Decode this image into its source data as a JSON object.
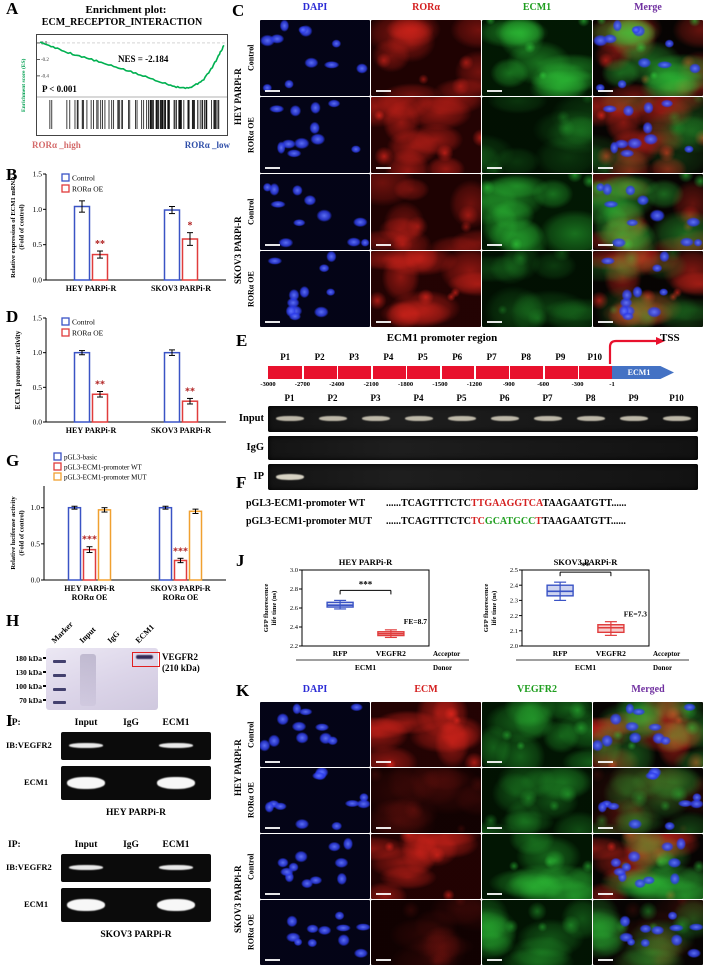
{
  "colors": {
    "control_blue": "#3a53c5",
    "oe_red": "#e03c3c",
    "mut_orange": "#f0a030",
    "dapi_blue": "#2b2bd5",
    "stain_red": "#d42020",
    "stain_green": "#1f9e1f",
    "merge_purple": "#7030a0",
    "gsea_green": "#00b050",
    "promoter_red": "#e8112d",
    "gene_blue": "#4472c4",
    "sig_red": "#b02020"
  },
  "panels": {
    "A": {
      "label": "A",
      "title1": "Enrichment plot:",
      "title2": "ECM_RECEPTOR_INTERACTION",
      "nes": "NES = -2.184",
      "pval": "P < 0.001",
      "ylabel": "Enrichment score (ES)",
      "x_left": "RORα _high",
      "x_right": "RORα _low",
      "yticks": [
        "0.0",
        "-0.2",
        "-0.4"
      ]
    },
    "B": {
      "label": "B"
    },
    "C": {
      "label": "C",
      "columns": [
        {
          "name": "DAPI",
          "color": "#2b2bd5"
        },
        {
          "name": "RORα",
          "color": "#d42020"
        },
        {
          "name": "ECM1",
          "color": "#1f9e1f"
        },
        {
          "name": "Merge",
          "color": "#7030a0"
        }
      ],
      "groups": [
        {
          "name": "HEY PARPi-R",
          "rows": [
            {
              "name": "Control",
              "red": 0.75,
              "green": 0.85
            },
            {
              "name": "RORα OE",
              "red": 1.0,
              "green": 0.35
            }
          ]
        },
        {
          "name": "SKOV3 PARPi-R",
          "rows": [
            {
              "name": "Control",
              "red": 0.7,
              "green": 0.85
            },
            {
              "name": "RORα OE",
              "red": 0.95,
              "green": 0.4
            }
          ]
        }
      ]
    },
    "D": {
      "label": "D"
    },
    "E": {
      "label": "E",
      "title": "ECM1 promoter region",
      "tss": "TSS",
      "gene": "ECM1",
      "p_labels": [
        "P1",
        "P2",
        "P3",
        "P4",
        "P5",
        "P6",
        "P7",
        "P8",
        "P9",
        "P10"
      ],
      "positions": [
        "-3000",
        "-2700",
        "-2400",
        "-2100",
        "-1800",
        "-1500",
        "-1200",
        "-900",
        "-600",
        "-300",
        "-1"
      ],
      "gel_rows": [
        {
          "name": "Input",
          "bands": [
            1,
            1,
            1,
            1,
            1,
            1,
            1,
            1,
            1,
            1
          ]
        },
        {
          "name": "IgG",
          "bands": [
            0,
            0,
            0,
            0,
            0,
            0,
            0,
            0,
            0,
            0
          ]
        },
        {
          "name": "IP",
          "bands": [
            1,
            0,
            0,
            0,
            0,
            0,
            0,
            0,
            0,
            0
          ]
        }
      ]
    },
    "F": {
      "label": "F",
      "lines": [
        {
          "name": "pGL3-ECM1-promoter WT",
          "segments": [
            {
              "t": "......TCAGTTTCTC",
              "c": "#000000"
            },
            {
              "t": "TTGAAGGTCA",
              "c": "#d42020"
            },
            {
              "t": "TAAGAATGTT......",
              "c": "#000000"
            }
          ]
        },
        {
          "name": "pGL3-ECM1-promoter MUT",
          "segments": [
            {
              "t": "......TCAGTTTCTC",
              "c": "#000000"
            },
            {
              "t": "TC",
              "c": "#d42020"
            },
            {
              "t": "GCATGCC",
              "c": "#1f9e1f"
            },
            {
              "t": "T",
              "c": "#d42020"
            },
            {
              "t": "TAAGAATGTT......",
              "c": "#000000"
            }
          ]
        }
      ]
    },
    "G": {
      "label": "G"
    },
    "H": {
      "label": "H",
      "lanes": [
        "Marker",
        "Input",
        "IgG",
        "ECM1"
      ],
      "mw": [
        "180 kDa",
        "130 kDa",
        "100 kDa",
        "70 kDa"
      ],
      "target": [
        "VEGFR2",
        "(210 kDa)"
      ]
    },
    "I": {
      "label": "I",
      "sets": [
        {
          "ip": "IP:",
          "lanes": [
            "Input",
            "IgG",
            "ECM1"
          ],
          "blots": [
            {
              "name": "IB:VEGFR2",
              "bands": [
                1,
                0,
                1
              ],
              "thick": false
            },
            {
              "name": "ECM1",
              "bands": [
                1,
                0,
                1
              ],
              "thick": true
            }
          ],
          "cell_line": "HEY PARPi-R"
        },
        {
          "ip": "IP:",
          "lanes": [
            "Input",
            "IgG",
            "ECM1"
          ],
          "blots": [
            {
              "name": "IB:VEGFR2",
              "bands": [
                1,
                0,
                1
              ],
              "thick": false
            },
            {
              "name": "ECM1",
              "bands": [
                1,
                0,
                1
              ],
              "thick": true
            }
          ],
          "cell_line": "SKOV3 PARPi-R"
        }
      ]
    },
    "J": {
      "label": "J"
    },
    "K": {
      "label": "K",
      "columns": [
        {
          "name": "DAPI",
          "color": "#2b2bd5"
        },
        {
          "name": "ECM",
          "color": "#d42020"
        },
        {
          "name": "VEGFR2",
          "color": "#1f9e1f"
        },
        {
          "name": "Merged",
          "color": "#7030a0"
        }
      ],
      "groups": [
        {
          "name": "HEY PARPi-R",
          "rows": [
            {
              "name": "Control",
              "red": 0.95,
              "green": 0.7
            },
            {
              "name": "RORα OE",
              "red": 0.2,
              "green": 0.55
            }
          ]
        },
        {
          "name": "SKOV3 PARPi-R",
          "rows": [
            {
              "name": "Control",
              "red": 0.9,
              "green": 0.75
            },
            {
              "name": "RORα OE",
              "red": 0.18,
              "green": 0.6
            }
          ]
        }
      ]
    }
  },
  "chart_data": [
    {
      "id": "A",
      "type": "line",
      "title": "ECM_RECEPTOR_INTERACTION",
      "ylabel": "Enrichment score (ES)",
      "NES": -2.184,
      "P": "< 0.001",
      "x_groups": [
        "RORα _high",
        "RORα _low"
      ],
      "ylim": [
        -0.62,
        0.06
      ],
      "curve": [
        [
          0,
          0.01
        ],
        [
          0.06,
          -0.04
        ],
        [
          0.13,
          -0.1
        ],
        [
          0.2,
          -0.15
        ],
        [
          0.28,
          -0.2
        ],
        [
          0.36,
          -0.26
        ],
        [
          0.44,
          -0.31
        ],
        [
          0.52,
          -0.37
        ],
        [
          0.6,
          -0.43
        ],
        [
          0.68,
          -0.49
        ],
        [
          0.74,
          -0.53
        ],
        [
          0.79,
          -0.55
        ],
        [
          0.84,
          -0.52
        ],
        [
          0.89,
          -0.44
        ],
        [
          0.93,
          -0.32
        ],
        [
          0.97,
          -0.16
        ],
        [
          1,
          -0.03
        ]
      ]
    },
    {
      "id": "B",
      "type": "bar",
      "ylabel": [
        "Relative expression of ECM1 mRNA",
        "(Fold of control)"
      ],
      "ylim": [
        0,
        1.5
      ],
      "yticks": [
        0,
        0.5,
        1,
        1.5
      ],
      "categories": [
        "HEY PARPi-R",
        "SKOV3 PARPi-R"
      ],
      "series": [
        {
          "name": "Control",
          "color_key": "control_blue",
          "values": [
            1.04,
            0.99
          ],
          "errors": [
            0.08,
            0.05
          ],
          "sig": [
            "",
            ""
          ]
        },
        {
          "name": "RORα OE",
          "color_key": "oe_red",
          "values": [
            0.36,
            0.58
          ],
          "errors": [
            0.05,
            0.09
          ],
          "sig": [
            "**",
            "*"
          ]
        }
      ]
    },
    {
      "id": "D",
      "type": "bar",
      "ylabel": [
        "ECM1 promoter activity"
      ],
      "ylim": [
        0,
        1.5
      ],
      "yticks": [
        0,
        0.5,
        1,
        1.5
      ],
      "categories": [
        "HEY PARPi-R",
        "SKOV3 PARPi-R"
      ],
      "series": [
        {
          "name": "Control",
          "color_key": "control_blue",
          "values": [
            1,
            1
          ],
          "errors": [
            0.03,
            0.04
          ],
          "sig": [
            "",
            ""
          ]
        },
        {
          "name": "RORα OE",
          "color_key": "oe_red",
          "values": [
            0.4,
            0.3
          ],
          "errors": [
            0.04,
            0.04
          ],
          "sig": [
            "**",
            "**"
          ]
        }
      ]
    },
    {
      "id": "G",
      "type": "bar",
      "ylabel": [
        "Relative luciferase activity",
        "(Fold of control)"
      ],
      "ylim": [
        0,
        1.3
      ],
      "yticks": [
        0,
        0.5,
        1
      ],
      "categories": [
        [
          "HEY PARPi-R",
          "RORα OE"
        ],
        [
          "SKOV3 PARPi-R",
          "RORα OE"
        ]
      ],
      "series": [
        {
          "name": "pGL3-basic",
          "color_key": "control_blue",
          "values": [
            1,
            1
          ],
          "errors": [
            0.02,
            0.02
          ],
          "sig": [
            "",
            ""
          ]
        },
        {
          "name": "pGL3-ECM1-promoter WT",
          "color_key": "oe_red",
          "values": [
            0.42,
            0.27
          ],
          "errors": [
            0.04,
            0.03
          ],
          "sig": [
            "***",
            "***"
          ]
        },
        {
          "name": "pGL3-ECM1-promoter MUT",
          "color_key": "mut_orange",
          "values": [
            0.97,
            0.95
          ],
          "errors": [
            0.03,
            0.03
          ],
          "sig": [
            "",
            ""
          ]
        }
      ]
    },
    {
      "id": "J1",
      "type": "box",
      "title": "HEY PARPi-R",
      "ylabel": [
        "GFP fluorescence",
        "life time (ns)"
      ],
      "ylim": [
        2.2,
        3
      ],
      "yticks": [
        2.2,
        2.4,
        2.6,
        2.8,
        3
      ],
      "categories": [
        "RFP",
        "VEGFR2"
      ],
      "boxes": [
        {
          "low": 2.59,
          "q1": 2.61,
          "med": 2.63,
          "q3": 2.66,
          "high": 2.68,
          "color_key": "control_blue"
        },
        {
          "low": 2.29,
          "q1": 2.31,
          "med": 2.33,
          "q3": 2.35,
          "high": 2.37,
          "color_key": "oe_red"
        }
      ],
      "sig": "***",
      "fe": "FE=8.7",
      "row1_right": "Acceptor",
      "row2_label": "ECM1",
      "row2_right": "Donor"
    },
    {
      "id": "J2",
      "type": "box",
      "title": "SKOV3 PARPi-R",
      "ylabel": [
        "GFP fluorescence",
        "life time (ns)"
      ],
      "ylim": [
        2,
        2.5
      ],
      "yticks": [
        2,
        2.1,
        2.2,
        2.3,
        2.4,
        2.5
      ],
      "categories": [
        "RFP",
        "VEGFR2"
      ],
      "boxes": [
        {
          "low": 2.3,
          "q1": 2.33,
          "med": 2.36,
          "q3": 2.4,
          "high": 2.42,
          "color_key": "control_blue"
        },
        {
          "low": 2.07,
          "q1": 2.09,
          "med": 2.12,
          "q3": 2.14,
          "high": 2.16,
          "color_key": "oe_red"
        }
      ],
      "sig": "**",
      "fe": "FE=7.3",
      "row1_right": "Acceptor",
      "row2_label": "ECM1",
      "row2_right": "Donor"
    }
  ]
}
